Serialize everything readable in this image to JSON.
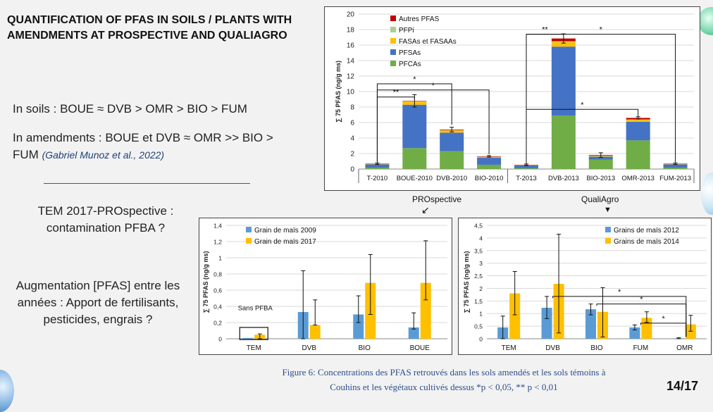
{
  "slide": {
    "title_line1": "QUANTIFICATION OF PFAS IN SOILS / PLANTS WITH",
    "title_line2": "AMENDMENTS AT PROSPECTIVE AND QUALIAGRO",
    "soils_text": "In soils : BOUE ≈ DVB > OMR > BIO > FUM",
    "amend_line1": "In amendments : BOUE et DVB ≈ OMR >> BIO >",
    "amend_line2": "FUM",
    "citation": "(Gabriel Munoz et al., 2022)",
    "tem_line1": "TEM 2017-PROspective :",
    "tem_line2": "contamination PFBA ?",
    "aug_line1": "Augmentation [PFAS] entre les",
    "aug_line2": "années : Apport de fertilisants,",
    "aug_line3": "pesticides, engrais ?",
    "label_prospective": "PROspective",
    "label_qualiagro": "QualiAgro",
    "caption_line1": "Figure 6: Concentrations des PFAS retrouvés dans les sols amendés et les sols témoins à",
    "caption_line2": "Couhins et les végétaux cultivés dessus *p < 0,05, ** p < 0,01",
    "page": "14/17",
    "arrow_down": "▼",
    "arrow_diag": "↙"
  },
  "chart_data": [
    {
      "type": "bar",
      "stacked": true,
      "ylabel": "∑ 75 PFAS (ng/g ms)",
      "ylim": [
        0,
        20
      ],
      "yticks": [
        "0",
        "2",
        "4",
        "6",
        "8",
        "10",
        "12",
        "14",
        "16",
        "18",
        "20"
      ],
      "categories": [
        "T-2010",
        "BOUE-2010",
        "DVB-2010",
        "BIO-2010",
        "T-2013",
        "DVB-2013",
        "BIO-2013",
        "OMR-2013",
        "FUM-2013"
      ],
      "series": [
        {
          "name": "PFCAs",
          "color": "#70ad47",
          "values": [
            0.15,
            2.7,
            2.3,
            0.55,
            0.1,
            6.9,
            1.2,
            3.7,
            0.15
          ]
        },
        {
          "name": "PFSAs",
          "color": "#4472c4",
          "values": [
            0.45,
            5.6,
            2.4,
            0.9,
            0.35,
            8.9,
            0.4,
            2.4,
            0.45
          ]
        },
        {
          "name": "FASAs et FASAAs",
          "color": "#ffc000",
          "values": [
            0.05,
            0.4,
            0.3,
            0.12,
            0.05,
            0.6,
            0.1,
            0.25,
            0.05
          ]
        },
        {
          "name": "PFPi",
          "color": "#a9d18e",
          "values": [
            0.02,
            0.05,
            0.03,
            0.02,
            0.02,
            0.1,
            0.02,
            0.05,
            0.02
          ]
        },
        {
          "name": "Autres PFAS",
          "color": "#c00000",
          "values": [
            0.03,
            0.05,
            0.07,
            0.05,
            0.03,
            0.35,
            0.08,
            0.2,
            0.03
          ]
        }
      ],
      "errors": [
        0.1,
        0.8,
        0.3,
        0.1,
        0.1,
        0.6,
        0.3,
        0.15,
        0.1
      ],
      "significance": [
        "**",
        "*",
        "*",
        "**",
        "*",
        "*"
      ]
    },
    {
      "type": "bar",
      "ylabel": "∑ 75 PFAS (ng/g ms)",
      "ylim": [
        0,
        1.4
      ],
      "yticks": [
        "0",
        "0,2",
        "0,4",
        "0,6",
        "0,8",
        "1",
        "1,2",
        "1,4"
      ],
      "categories": [
        "TEM",
        "DVB",
        "BIO",
        "BOUE"
      ],
      "series": [
        {
          "name": "Grain de maïs 2009",
          "color": "#5b9bd5",
          "values": [
            0.01,
            0.33,
            0.3,
            0.14
          ]
        },
        {
          "name": "Grain de maïs 2017",
          "color": "#ffc000",
          "values": [
            0.05,
            0.17,
            0.69,
            0.69
          ]
        }
      ],
      "errors_low": [
        [
          0.0,
          0.0
        ],
        [
          0.0,
          0.17
        ],
        [
          0.2,
          0.3
        ],
        [
          0.12,
          0.48
        ]
      ],
      "errors_high": [
        [
          0.0,
          0.06
        ],
        [
          0.84,
          0.48
        ],
        [
          0.53,
          1.04
        ],
        [
          0.32,
          1.21
        ]
      ],
      "annotation": "Sans PFBA"
    },
    {
      "type": "bar",
      "ylabel": "∑ 75 PFAS (ng/g ms)",
      "ylim": [
        0,
        4.5
      ],
      "yticks": [
        "0",
        "0,5",
        "1",
        "1,5",
        "2",
        "2,5",
        "3",
        "3,5",
        "4",
        "4,5"
      ],
      "categories": [
        "TEM",
        "DVB",
        "BIO",
        "FUM",
        "OMR"
      ],
      "series": [
        {
          "name": "Grains de maïs 2012",
          "color": "#5b9bd5",
          "values": [
            0.45,
            1.23,
            1.17,
            0.45,
            0.02
          ]
        },
        {
          "name": "Grains de maïs 2014",
          "color": "#ffc000",
          "values": [
            1.8,
            2.18,
            1.07,
            0.83,
            0.57
          ]
        }
      ],
      "errors_low": [
        [
          0.0,
          0.95
        ],
        [
          0.8,
          0.23
        ],
        [
          0.95,
          0.07
        ],
        [
          0.35,
          0.65
        ],
        [
          0.0,
          0.3
        ]
      ],
      "errors_high": [
        [
          0.9,
          2.67
        ],
        [
          1.68,
          4.15
        ],
        [
          1.38,
          2.03
        ],
        [
          0.55,
          1.07
        ],
        [
          0.04,
          0.93
        ]
      ],
      "significance": [
        "*",
        "*",
        "*"
      ]
    }
  ]
}
